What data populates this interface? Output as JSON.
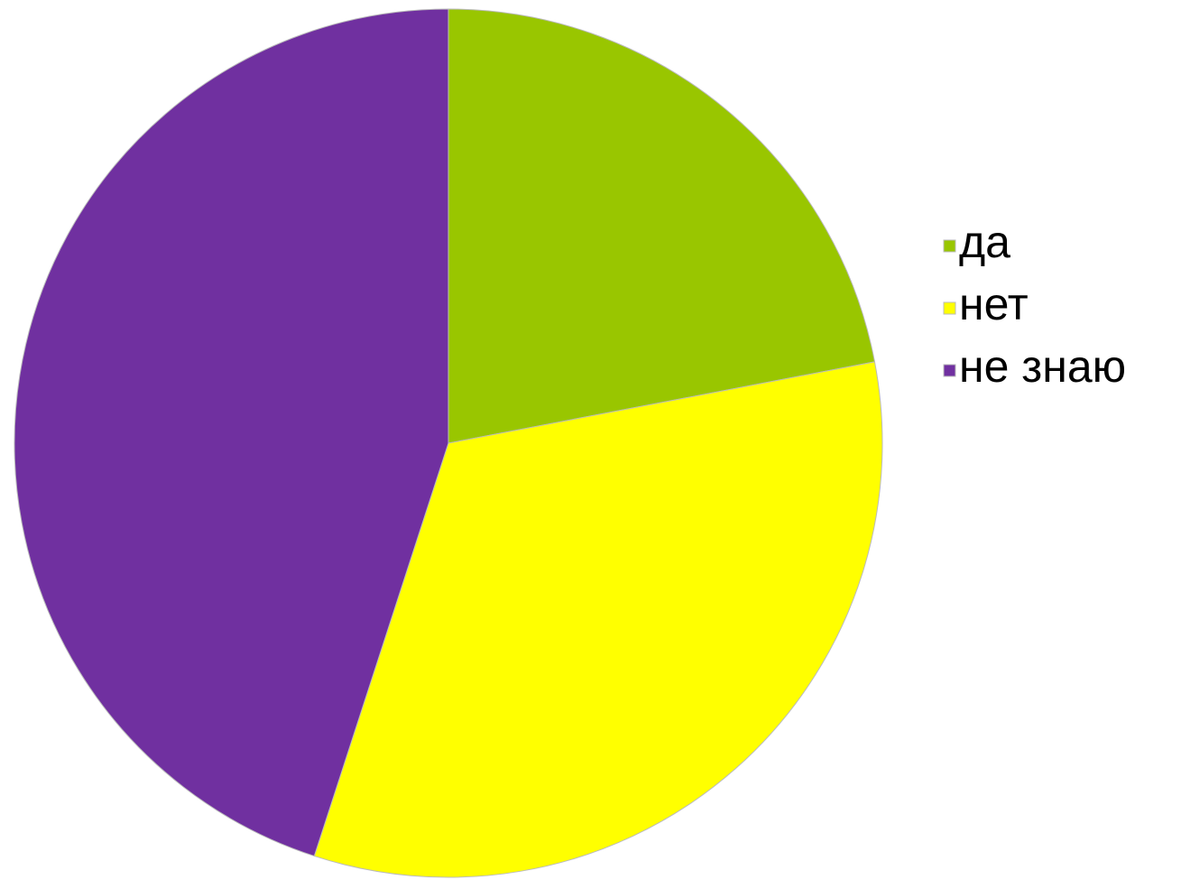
{
  "chart_data": {
    "type": "pie",
    "categories": [
      "да",
      "нет",
      "не знаю"
    ],
    "values": [
      22,
      33,
      45
    ],
    "colors": [
      "#99c600",
      "#ffff00",
      "#7030a0"
    ],
    "legend": "right"
  }
}
